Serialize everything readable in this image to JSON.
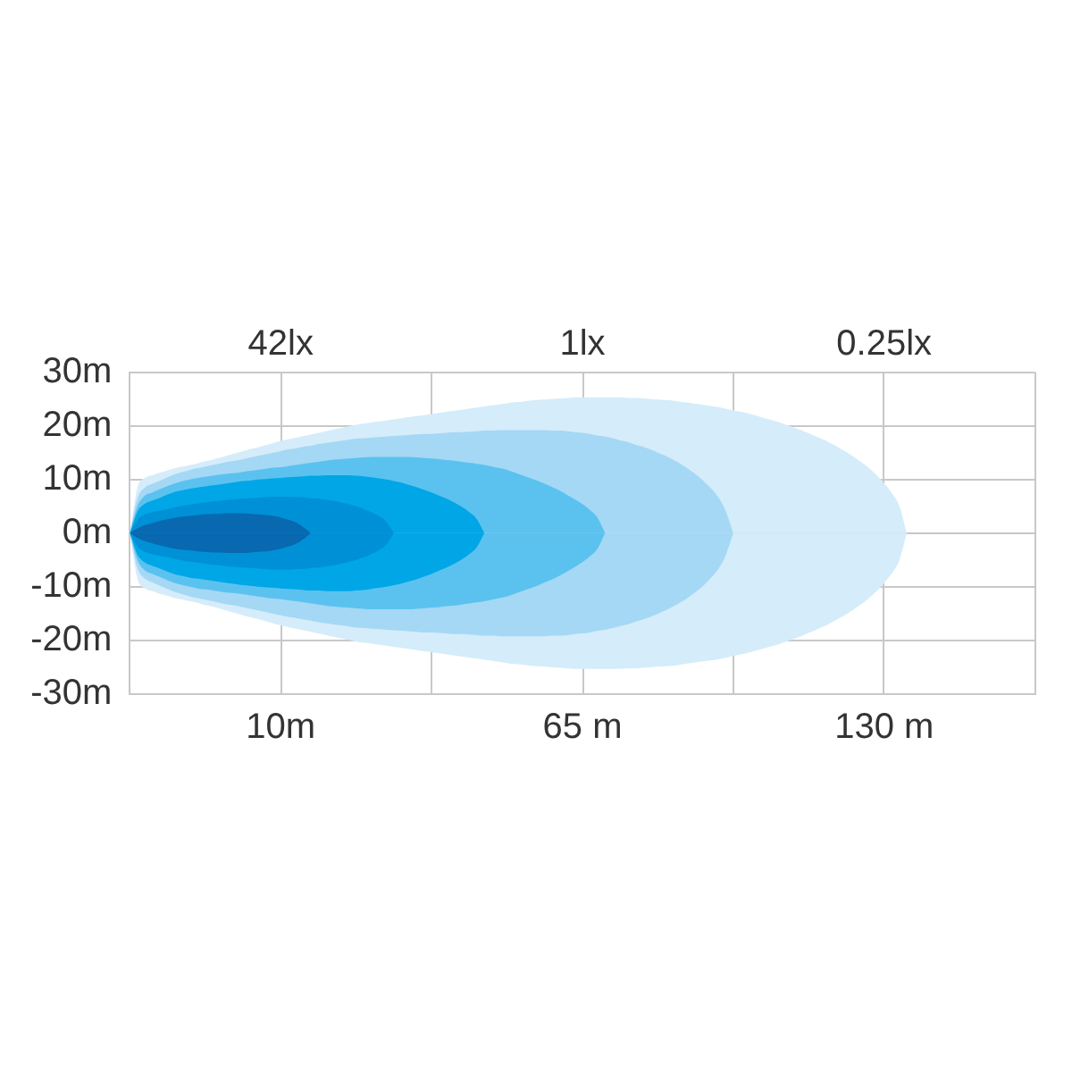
{
  "chart_data": {
    "type": "area",
    "categories": [
      null,
      null,
      null,
      null,
      null,
      null,
      null,
      null,
      null,
      null,
      null,
      null,
      null,
      null,
      null,
      null,
      null,
      null,
      null,
      null,
      "10m",
      null,
      null,
      null,
      null,
      null,
      null,
      null,
      null,
      null,
      null,
      null,
      null,
      null,
      null,
      null,
      null,
      null,
      null,
      null,
      null,
      null,
      null,
      null,
      null,
      null,
      null,
      null,
      null,
      null,
      null,
      null,
      null,
      null,
      null,
      null,
      null,
      null,
      null,
      null,
      "65 m",
      null,
      null,
      null,
      null,
      null,
      null,
      null,
      null,
      null,
      null,
      null,
      null,
      null,
      null,
      null,
      null,
      null,
      null,
      null,
      null,
      null,
      null,
      null,
      null,
      null,
      null,
      null,
      null,
      null,
      null,
      null,
      null,
      null,
      null,
      null,
      null,
      null,
      null,
      null,
      "130 m",
      null,
      null,
      null,
      null,
      null,
      null,
      null,
      null,
      null,
      null,
      null,
      null,
      null,
      null,
      null,
      null,
      null,
      null,
      null,
      null
    ],
    "ylim": [
      -30,
      30
    ],
    "yticks": [
      {
        "value": -30,
        "label": "-30m"
      },
      {
        "value": -20,
        "label": "-20m"
      },
      {
        "value": -10,
        "label": "-10m"
      },
      {
        "value": 0,
        "label": "0m"
      },
      {
        "value": 10,
        "label": "10m"
      },
      {
        "value": 20,
        "label": "20m"
      },
      {
        "value": 30,
        "label": "30m"
      }
    ],
    "grid": true,
    "annotations": [
      "42lx",
      "1lx",
      "0.25lx"
    ],
    "series": [
      {
        "color": "#d5ecfa",
        "values": [
          0,
          8.5,
          10.3,
          10.8,
          11.3,
          11.7,
          12.1,
          12.4,
          12.7,
          13.0,
          13.4,
          13.7,
          14.1,
          14.5,
          14.9,
          15.3,
          15.7,
          16.0,
          16.4,
          16.8,
          17.2,
          17.5,
          17.8,
          18.1,
          18.4,
          18.7,
          19.0,
          19.3,
          19.6,
          19.9,
          20.2,
          20.4,
          20.6,
          20.8,
          21.0,
          21.2,
          21.4,
          21.6,
          21.8,
          22.0,
          22.2,
          22.4,
          22.6,
          22.8,
          23.0,
          23.2,
          23.4,
          23.6,
          23.8,
          24.0,
          24.2,
          24.4,
          24.5,
          24.7,
          24.8,
          24.9,
          25.0,
          25.1,
          25.2,
          25.3,
          25.3,
          25.3,
          25.3,
          25.3,
          25.3,
          25.3,
          25.2,
          25.2,
          25.1,
          25.0,
          24.9,
          24.8,
          24.7,
          24.5,
          24.3,
          24.1,
          23.9,
          23.7,
          23.5,
          23.2,
          22.9,
          22.6,
          22.3,
          21.9,
          21.5,
          21.1,
          20.7,
          20.2,
          19.7,
          19.2,
          18.6,
          18.0,
          17.4,
          16.7,
          15.9,
          15.1,
          14.2,
          13.2,
          12.1,
          10.8,
          9.3,
          7.5,
          5.1,
          0,
          null,
          null,
          null,
          null,
          null,
          null,
          null,
          null,
          null,
          null,
          null,
          null,
          null,
          null,
          null,
          null,
          null
        ]
      },
      {
        "color": "#d5ecfa",
        "values": [
          0,
          -8.5,
          -10.3,
          -10.8,
          -11.3,
          -11.7,
          -12.1,
          -12.4,
          -12.7,
          -13.0,
          -13.4,
          -13.7,
          -14.1,
          -14.5,
          -14.9,
          -15.3,
          -15.7,
          -16.0,
          -16.4,
          -16.8,
          -17.2,
          -17.5,
          -17.8,
          -18.1,
          -18.4,
          -18.7,
          -19.0,
          -19.3,
          -19.6,
          -19.9,
          -20.2,
          -20.4,
          -20.6,
          -20.8,
          -21.0,
          -21.2,
          -21.4,
          -21.6,
          -21.8,
          -22.0,
          -22.2,
          -22.4,
          -22.6,
          -22.8,
          -23.0,
          -23.2,
          -23.4,
          -23.6,
          -23.8,
          -24.0,
          -24.2,
          -24.4,
          -24.5,
          -24.7,
          -24.8,
          -24.9,
          -25.0,
          -25.1,
          -25.2,
          -25.3,
          -25.3,
          -25.3,
          -25.3,
          -25.3,
          -25.3,
          -25.3,
          -25.2,
          -25.2,
          -25.1,
          -25.0,
          -24.9,
          -24.8,
          -24.7,
          -24.5,
          -24.3,
          -24.1,
          -23.9,
          -23.7,
          -23.5,
          -23.2,
          -22.9,
          -22.6,
          -22.3,
          -21.9,
          -21.5,
          -21.1,
          -20.7,
          -20.2,
          -19.7,
          -19.2,
          -18.6,
          -18.0,
          -17.4,
          -16.7,
          -15.9,
          -15.1,
          -14.2,
          -13.2,
          -12.1,
          -10.8,
          -9.3,
          -7.5,
          -5.1,
          0,
          null,
          null,
          null,
          null,
          null,
          null,
          null,
          null,
          null,
          null,
          null,
          null,
          null,
          null,
          null,
          null,
          null
        ]
      },
      {
        "color": "#a5d8f4",
        "values": [
          0,
          6.5,
          8.5,
          9.2,
          9.8,
          10.4,
          11.0,
          11.4,
          11.8,
          12.1,
          12.4,
          12.7,
          13.0,
          13.3,
          13.5,
          13.8,
          14.1,
          14.4,
          14.7,
          15.0,
          15.3,
          15.6,
          15.8,
          16.1,
          16.3,
          16.6,
          16.8,
          17.0,
          17.2,
          17.4,
          17.6,
          17.7,
          17.8,
          17.9,
          18.0,
          18.1,
          18.2,
          18.3,
          18.4,
          18.5,
          18.5,
          18.6,
          18.7,
          18.8,
          18.8,
          18.9,
          19.0,
          19.1,
          19.1,
          19.2,
          19.2,
          19.2,
          19.2,
          19.2,
          19.2,
          19.2,
          19.1,
          19.1,
          19.0,
          18.8,
          18.7,
          18.5,
          18.2,
          18.0,
          17.7,
          17.3,
          17.0,
          16.5,
          16.1,
          15.6,
          15.0,
          14.4,
          13.7,
          12.9,
          12.0,
          11.0,
          9.8,
          8.4,
          6.7,
          4.1,
          0,
          null,
          null,
          null,
          null,
          null,
          null,
          null,
          null,
          null,
          null,
          null,
          null,
          null,
          null,
          null,
          null,
          null,
          null,
          null,
          null,
          null,
          null,
          null,
          null,
          null,
          null,
          null,
          null,
          null,
          null,
          null,
          null,
          null,
          null,
          null,
          null,
          null,
          null,
          null,
          null
        ]
      },
      {
        "color": "#a5d8f4",
        "values": [
          0,
          -6.5,
          -8.5,
          -9.2,
          -9.8,
          -10.4,
          -11.0,
          -11.4,
          -11.8,
          -12.1,
          -12.4,
          -12.7,
          -13.0,
          -13.3,
          -13.5,
          -13.8,
          -14.1,
          -14.4,
          -14.7,
          -15.0,
          -15.3,
          -15.6,
          -15.8,
          -16.1,
          -16.3,
          -16.6,
          -16.8,
          -17.0,
          -17.2,
          -17.4,
          -17.6,
          -17.7,
          -17.8,
          -17.9,
          -18.0,
          -18.1,
          -18.2,
          -18.3,
          -18.4,
          -18.5,
          -18.5,
          -18.6,
          -18.7,
          -18.8,
          -18.8,
          -18.9,
          -19.0,
          -19.1,
          -19.1,
          -19.2,
          -19.2,
          -19.2,
          -19.2,
          -19.2,
          -19.2,
          -19.2,
          -19.1,
          -19.1,
          -19.0,
          -18.8,
          -18.7,
          -18.5,
          -18.2,
          -18.0,
          -17.7,
          -17.3,
          -17.0,
          -16.5,
          -16.1,
          -15.6,
          -15.0,
          -14.4,
          -13.7,
          -12.9,
          -12.0,
          -11.0,
          -9.8,
          -8.4,
          -6.7,
          -4.1,
          0,
          null,
          null,
          null,
          null,
          null,
          null,
          null,
          null,
          null,
          null,
          null,
          null,
          null,
          null,
          null,
          null,
          null,
          null,
          null,
          null,
          null,
          null,
          null,
          null,
          null,
          null,
          null,
          null,
          null,
          null,
          null,
          null,
          null,
          null,
          null,
          null,
          null,
          null,
          null,
          null
        ]
      },
      {
        "color": "#5bc2ef",
        "values": [
          0,
          5,
          7,
          7.6,
          8.2,
          8.8,
          9.3,
          9.7,
          10.0,
          10.3,
          10.5,
          10.7,
          10.9,
          11.1,
          11.2,
          11.4,
          11.6,
          11.8,
          12.0,
          12.2,
          12.3,
          12.5,
          12.7,
          12.9,
          13.1,
          13.3,
          13.5,
          13.7,
          13.8,
          13.9,
          14.0,
          14.1,
          14.2,
          14.2,
          14.2,
          14.2,
          14.2,
          14.2,
          14.1,
          14.0,
          13.9,
          13.8,
          13.6,
          13.5,
          13.3,
          13.1,
          12.9,
          12.7,
          12.4,
          12.1,
          11.8,
          11.3,
          10.8,
          10.3,
          9.8,
          9.2,
          8.6,
          7.9,
          7.1,
          6.3,
          5.4,
          4.3,
          2.9,
          0,
          null,
          null,
          null,
          null,
          null,
          null,
          null,
          null,
          null,
          null,
          null,
          null,
          null,
          null,
          null,
          null,
          null,
          null,
          null,
          null,
          null,
          null,
          null,
          null,
          null,
          null,
          null,
          null,
          null,
          null,
          null,
          null,
          null,
          null,
          null,
          null,
          null,
          null,
          null,
          null,
          null,
          null,
          null,
          null,
          null,
          null,
          null,
          null,
          null,
          null,
          null,
          null,
          null,
          null,
          null,
          null,
          null
        ]
      },
      {
        "color": "#5bc2ef",
        "values": [
          0,
          -5,
          -7,
          -7.6,
          -8.2,
          -8.8,
          -9.3,
          -9.7,
          -10.0,
          -10.3,
          -10.5,
          -10.7,
          -10.9,
          -11.1,
          -11.2,
          -11.4,
          -11.6,
          -11.8,
          -12.0,
          -12.2,
          -12.3,
          -12.5,
          -12.7,
          -12.9,
          -13.1,
          -13.3,
          -13.5,
          -13.7,
          -13.8,
          -13.9,
          -14.0,
          -14.1,
          -14.2,
          -14.2,
          -14.2,
          -14.2,
          -14.2,
          -14.2,
          -14.1,
          -14.0,
          -13.9,
          -13.8,
          -13.6,
          -13.5,
          -13.3,
          -13.1,
          -12.9,
          -12.7,
          -12.4,
          -12.1,
          -11.8,
          -11.3,
          -10.8,
          -10.3,
          -9.8,
          -9.2,
          -8.6,
          -7.9,
          -7.1,
          -6.3,
          -5.4,
          -4.3,
          -2.9,
          0,
          null,
          null,
          null,
          null,
          null,
          null,
          null,
          null,
          null,
          null,
          null,
          null,
          null,
          null,
          null,
          null,
          null,
          null,
          null,
          null,
          null,
          null,
          null,
          null,
          null,
          null,
          null,
          null,
          null,
          null,
          null,
          null,
          null,
          null,
          null,
          null,
          null,
          null,
          null,
          null,
          null,
          null,
          null,
          null,
          null,
          null,
          null,
          null,
          null,
          null,
          null,
          null,
          null,
          null,
          null,
          null,
          null
        ]
      },
      {
        "color": "#00a6e6",
        "values": [
          0,
          4,
          5.5,
          6.1,
          6.6,
          7.2,
          7.7,
          8.0,
          8.3,
          8.5,
          8.7,
          8.9,
          9.1,
          9.3,
          9.5,
          9.7,
          9.8,
          10.0,
          10.1,
          10.2,
          10.3,
          10.4,
          10.5,
          10.6,
          10.7,
          10.7,
          10.8,
          10.8,
          10.8,
          10.8,
          10.7,
          10.6,
          10.4,
          10.2,
          10.0,
          9.7,
          9.4,
          9.0,
          8.6,
          8.1,
          7.6,
          7.0,
          6.4,
          5.7,
          4.9,
          3.9,
          2.6,
          0,
          null,
          null,
          null,
          null,
          null,
          null,
          null,
          null,
          null,
          null,
          null,
          null,
          null,
          null,
          null,
          null,
          null,
          null,
          null,
          null,
          null,
          null,
          null,
          null,
          null,
          null,
          null,
          null,
          null,
          null,
          null,
          null,
          null,
          null,
          null,
          null,
          null,
          null,
          null,
          null,
          null,
          null,
          null,
          null,
          null,
          null,
          null,
          null,
          null,
          null,
          null,
          null,
          null,
          null,
          null,
          null,
          null,
          null,
          null,
          null,
          null,
          null,
          null,
          null,
          null,
          null,
          null,
          null,
          null,
          null,
          null,
          null,
          null
        ]
      },
      {
        "color": "#00a6e6",
        "values": [
          0,
          -4,
          -5.5,
          -6.1,
          -6.6,
          -7.2,
          -7.7,
          -8.0,
          -8.3,
          -8.5,
          -8.7,
          -8.9,
          -9.1,
          -9.3,
          -9.5,
          -9.7,
          -9.8,
          -10.0,
          -10.1,
          -10.2,
          -10.3,
          -10.4,
          -10.5,
          -10.6,
          -10.7,
          -10.7,
          -10.8,
          -10.8,
          -10.8,
          -10.8,
          -10.7,
          -10.6,
          -10.4,
          -10.2,
          -10.0,
          -9.7,
          -9.4,
          -9.0,
          -8.6,
          -8.1,
          -7.6,
          -7.0,
          -6.4,
          -5.7,
          -4.9,
          -3.9,
          -2.6,
          0,
          null,
          null,
          null,
          null,
          null,
          null,
          null,
          null,
          null,
          null,
          null,
          null,
          null,
          null,
          null,
          null,
          null,
          null,
          null,
          null,
          null,
          null,
          null,
          null,
          null,
          null,
          null,
          null,
          null,
          null,
          null,
          null,
          null,
          null,
          null,
          null,
          null,
          null,
          null,
          null,
          null,
          null,
          null,
          null,
          null,
          null,
          null,
          null,
          null,
          null,
          null,
          null,
          null,
          null,
          null,
          null,
          null,
          null,
          null,
          null,
          null,
          null,
          null,
          null,
          null,
          null,
          null,
          null,
          null,
          null,
          null,
          null,
          null
        ]
      },
      {
        "color": "#0090d6",
        "values": [
          0,
          2.5,
          3.5,
          3.9,
          4.2,
          4.5,
          4.8,
          5.1,
          5.3,
          5.5,
          5.7,
          5.9,
          6.0,
          6.2,
          6.3,
          6.4,
          6.5,
          6.6,
          6.7,
          6.8,
          6.8,
          6.8,
          6.7,
          6.7,
          6.5,
          6.4,
          6.2,
          6.0,
          5.7,
          5.4,
          5.0,
          4.5,
          3.9,
          3.2,
          2.1,
          0,
          null,
          null,
          null,
          null,
          null,
          null,
          null,
          null,
          null,
          null,
          null,
          null,
          null,
          null,
          null,
          null,
          null,
          null,
          null,
          null,
          null,
          null,
          null,
          null,
          null,
          null,
          null,
          null,
          null,
          null,
          null,
          null,
          null,
          null,
          null,
          null,
          null,
          null,
          null,
          null,
          null,
          null,
          null,
          null,
          null,
          null,
          null,
          null,
          null,
          null,
          null,
          null,
          null,
          null,
          null,
          null,
          null,
          null,
          null,
          null,
          null,
          null,
          null,
          null,
          null,
          null,
          null,
          null,
          null,
          null,
          null,
          null,
          null,
          null,
          null,
          null,
          null,
          null,
          null,
          null,
          null,
          null,
          null,
          null,
          null
        ]
      },
      {
        "color": "#0090d6",
        "values": [
          0,
          -2.5,
          -3.5,
          -3.9,
          -4.2,
          -4.5,
          -4.8,
          -5.1,
          -5.3,
          -5.5,
          -5.7,
          -5.9,
          -6.0,
          -6.2,
          -6.3,
          -6.4,
          -6.5,
          -6.6,
          -6.7,
          -6.8,
          -6.8,
          -6.8,
          -6.7,
          -6.7,
          -6.5,
          -6.4,
          -6.2,
          -6.0,
          -5.7,
          -5.4,
          -5.0,
          -4.5,
          -3.9,
          -3.2,
          -2.1,
          0,
          null,
          null,
          null,
          null,
          null,
          null,
          null,
          null,
          null,
          null,
          null,
          null,
          null,
          null,
          null,
          null,
          null,
          null,
          null,
          null,
          null,
          null,
          null,
          null,
          null,
          null,
          null,
          null,
          null,
          null,
          null,
          null,
          null,
          null,
          null,
          null,
          null,
          null,
          null,
          null,
          null,
          null,
          null,
          null,
          null,
          null,
          null,
          null,
          null,
          null,
          null,
          null,
          null,
          null,
          null,
          null,
          null,
          null,
          null,
          null,
          null,
          null,
          null,
          null,
          null,
          null,
          null,
          null,
          null,
          null,
          null,
          null,
          null,
          null,
          null,
          null,
          null,
          null,
          null,
          null,
          null,
          null,
          null,
          null,
          null
        ]
      },
      {
        "color": "#0868b0",
        "values": [
          0,
          0.9,
          1.5,
          1.9,
          2.3,
          2.6,
          2.9,
          3.1,
          3.2,
          3.4,
          3.5,
          3.6,
          3.6,
          3.7,
          3.7,
          3.7,
          3.6,
          3.5,
          3.4,
          3.2,
          2.9,
          2.5,
          2.0,
          1.1,
          0,
          null,
          null,
          null,
          null,
          null,
          null,
          null,
          null,
          null,
          null,
          null,
          null,
          null,
          null,
          null,
          null,
          null,
          null,
          null,
          null,
          null,
          null,
          null,
          null,
          null,
          null,
          null,
          null,
          null,
          null,
          null,
          null,
          null,
          null,
          null,
          null,
          null,
          null,
          null,
          null,
          null,
          null,
          null,
          null,
          null,
          null,
          null,
          null,
          null,
          null,
          null,
          null,
          null,
          null,
          null,
          null,
          null,
          null,
          null,
          null,
          null,
          null,
          null,
          null,
          null,
          null,
          null,
          null,
          null,
          null,
          null,
          null,
          null,
          null,
          null,
          null,
          null,
          null,
          null,
          null,
          null,
          null,
          null,
          null,
          null,
          null,
          null,
          null,
          null,
          null,
          null,
          null,
          null,
          null,
          null,
          null
        ]
      },
      {
        "color": "#0868b0",
        "values": [
          0,
          -0.9,
          -1.5,
          -1.9,
          -2.3,
          -2.6,
          -2.9,
          -3.1,
          -3.2,
          -3.4,
          -3.5,
          -3.6,
          -3.6,
          -3.7,
          -3.7,
          -3.7,
          -3.6,
          -3.5,
          -3.4,
          -3.2,
          -2.9,
          -2.5,
          -2.0,
          -1.1,
          0,
          null,
          null,
          null,
          null,
          null,
          null,
          null,
          null,
          null,
          null,
          null,
          null,
          null,
          null,
          null,
          null,
          null,
          null,
          null,
          null,
          null,
          null,
          null,
          null,
          null,
          null,
          null,
          null,
          null,
          null,
          null,
          null,
          null,
          null,
          null,
          null,
          null,
          null,
          null,
          null,
          null,
          null,
          null,
          null,
          null,
          null,
          null,
          null,
          null,
          null,
          null,
          null,
          null,
          null,
          null,
          null,
          null,
          null,
          null,
          null,
          null,
          null,
          null,
          null,
          null,
          null,
          null,
          null,
          null,
          null,
          null,
          null,
          null,
          null,
          null,
          null,
          null,
          null,
          null,
          null,
          null,
          null,
          null,
          null,
          null,
          null,
          null,
          null,
          null,
          null,
          null,
          null,
          null,
          null,
          null,
          null
        ]
      }
    ]
  }
}
